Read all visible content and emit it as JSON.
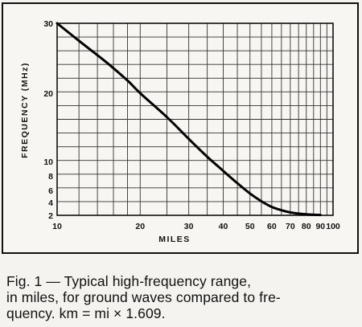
{
  "chart_data": {
    "type": "line",
    "xlabel": "MILES",
    "ylabel": "FREQUENCY (MHz)",
    "x_scale": "log",
    "y_scale": "nonlinear",
    "xlim": [
      10,
      100
    ],
    "ylim": [
      2,
      30
    ],
    "x_ticks": [
      10,
      20,
      30,
      40,
      50,
      60,
      70,
      80,
      90,
      100
    ],
    "y_ticks": [
      2,
      4,
      6,
      8,
      10,
      20,
      30
    ],
    "grid": true,
    "series": [
      {
        "x": [
          10,
          12,
          15,
          18,
          20,
          25,
          30,
          35,
          40,
          45,
          50,
          55,
          60,
          65,
          70,
          80,
          90
        ],
        "y": [
          30,
          27.5,
          24.5,
          21.8,
          20,
          16.5,
          13.3,
          10.7,
          8.7,
          7.0,
          5.5,
          4.2,
          3.3,
          2.8,
          2.45,
          2.15,
          2.05
        ]
      }
    ]
  },
  "caption": {
    "line1": "Fig. 1 — Typical high-frequency range,",
    "line2": "in miles, for ground waves compared to fre-",
    "line3": "quency. km = mi × 1.609."
  }
}
